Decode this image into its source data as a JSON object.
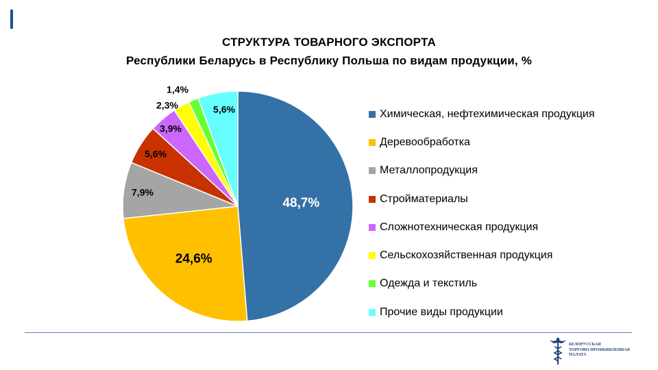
{
  "title": {
    "line1": "СТРУКТУРА ТОВАРНОГО ЭКСПОРТА",
    "line2": "Республики Беларусь в Республику Польша по видам продукции, %"
  },
  "chart_data": {
    "type": "pie",
    "unit": "%",
    "slices": [
      {
        "name": "Химическая, нефтехимическая продукция",
        "value": 48.7,
        "label": "48,7%",
        "color": "#3471a6",
        "label_color": "#ffffff"
      },
      {
        "name": "Деревообработка",
        "value": 24.6,
        "label": "24,6%",
        "color": "#ffc000",
        "label_color": "#000000"
      },
      {
        "name": "Металлопродукция",
        "value": 7.9,
        "label": "7,9%",
        "color": "#a5a5a5",
        "label_color": "#000000"
      },
      {
        "name": "Стройматериалы",
        "value": 5.6,
        "label": "5,6%",
        "color": "#c83200",
        "label_color": "#000000"
      },
      {
        "name": "Сложнотехническая продукция",
        "value": 3.9,
        "label": "3,9%",
        "color": "#cc66ff",
        "label_color": "#000000"
      },
      {
        "name": "Сельскохозяйственная продукция",
        "value": 2.3,
        "label": "2,3%",
        "color": "#ffff00",
        "label_color": "#000000"
      },
      {
        "name": "Одежда и текстиль",
        "value": 1.4,
        "label": "1,4%",
        "color": "#66ff33",
        "label_color": "#000000"
      },
      {
        "name": "Прочие виды продукции",
        "value": 5.6,
        "label": "5,6%",
        "color": "#66ffff",
        "label_color": "#000000"
      }
    ],
    "legend_position": "right"
  },
  "logo": {
    "text_line1": "БЕЛОРУССКАЯ",
    "text_line2": "ТОРГОВО-ПРОМЫШЛЕННАЯ",
    "text_line3": "ПАЛАТА",
    "color": "#1f3f7a"
  }
}
